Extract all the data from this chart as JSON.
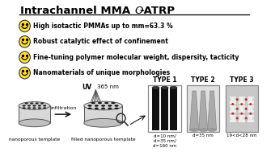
{
  "title_part1": "Intrachannel MMA ",
  "title_italic": "O",
  "title_part2": "-ATRP",
  "bullet_texts": [
    "High isotactic PMMAs up to mm=63.3 %",
    "Robust catalytic effect of confinement",
    "Fine-tuning polymer molecular weight, dispersity, tacticity",
    "Nanomaterials of unique morphologies"
  ],
  "smiley_color": "#FFE033",
  "smiley_edge": "#333333",
  "bottom_label_left": "nanoporous template",
  "bottom_label_right": "filled nanoporous template",
  "arrow_label": "infiltration",
  "uv_label": "UV",
  "nm_label": "365 nm",
  "type_labels": [
    "TYPE 1",
    "TYPE 2",
    "TYPE 3"
  ],
  "type1_sub": "d=10 nm/\nd=35 nm/\nd=160 nm",
  "type2_sub": "d=35 nm",
  "type3_sub": "19<d<28 nm"
}
